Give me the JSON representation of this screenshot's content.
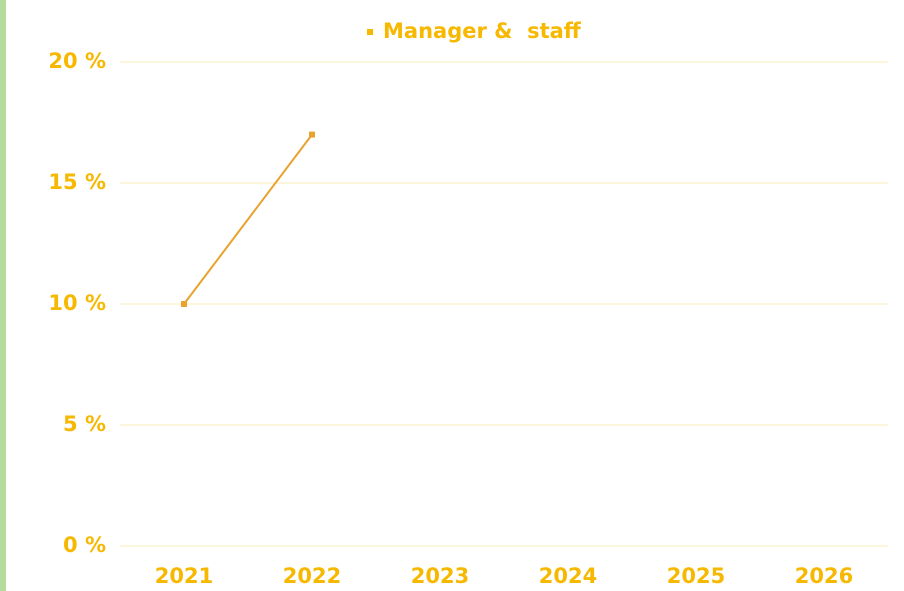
{
  "chart_data": {
    "type": "line",
    "categories": [
      "2021",
      "2022",
      "2023",
      "2024",
      "2025",
      "2026"
    ],
    "series": [
      {
        "name": "Manager &  staff",
        "color": "#e8a22e",
        "values": [
          10,
          17,
          null,
          null,
          null,
          null
        ]
      }
    ],
    "ylim": [
      0,
      20
    ],
    "yticks": [
      {
        "value": 0,
        "label": "0 %"
      },
      {
        "value": 5,
        "label": "5 %"
      },
      {
        "value": 10,
        "label": "10 %"
      },
      {
        "value": 15,
        "label": "15 %"
      },
      {
        "value": 20,
        "label": "20 %"
      }
    ],
    "grid": true,
    "legend": "top",
    "label_color": "#f6b800",
    "grid_color": "#f7ebb8"
  }
}
